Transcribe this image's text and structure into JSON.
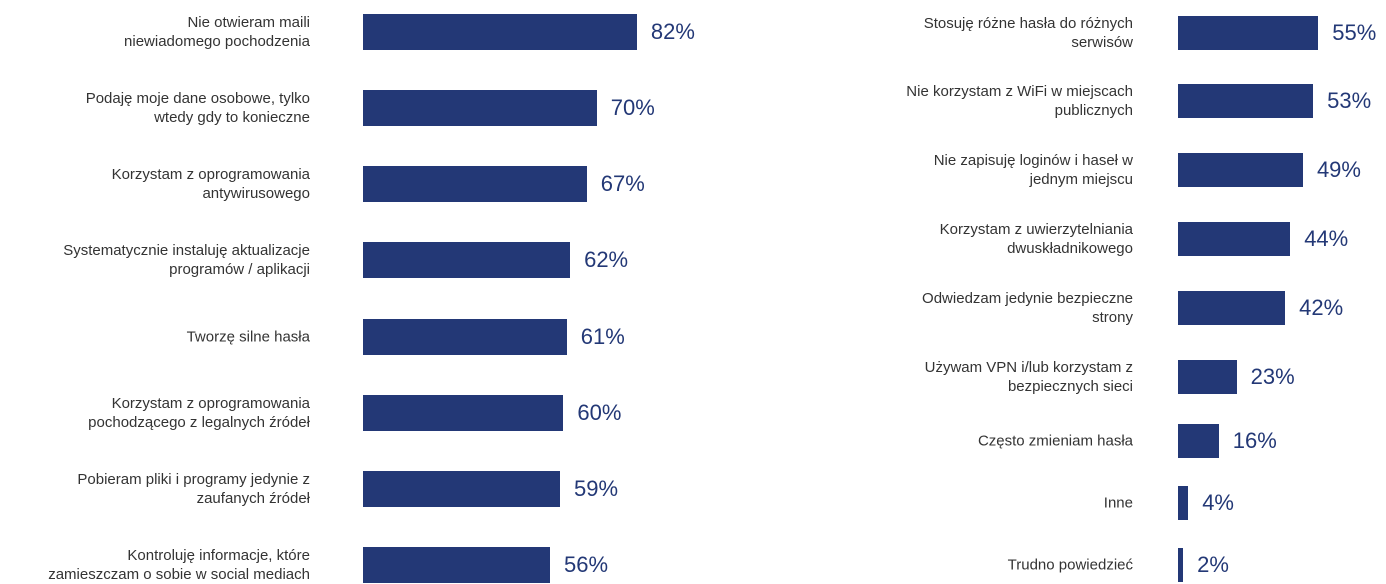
{
  "chart_data": [
    {
      "type": "barh",
      "categories": [
        "Nie otwieram maili\nniewiadomego pochodzenia",
        "Podaję moje dane osobowe, tylko\nwtedy gdy to konieczne",
        "Korzystam z oprogramowania\nantywirusowego",
        "Systematycznie instaluję aktualizacje\nprogramów / aplikacji",
        "Tworzę silne hasła",
        "Korzystam z oprogramowania\npochodzącego z legalnych źródeł",
        "Pobieram pliki i programy jedynie z\nzaufanych źródeł",
        "Kontroluję informacje, które\nzamieszczam o sobie w social mediach"
      ],
      "values": [
        82,
        70,
        67,
        62,
        61,
        60,
        59,
        56
      ],
      "value_labels": [
        "82%",
        "70%",
        "67%",
        "62%",
        "61%",
        "60%",
        "59%",
        "56%"
      ],
      "color": "#233876",
      "xlim": [
        0,
        100
      ]
    },
    {
      "type": "barh",
      "categories": [
        "Stosuję różne hasła do różnych\nserwisów",
        "Nie korzystam z WiFi w miejscach\npublicznych",
        "Nie zapisuję loginów i haseł w\njednym miejscu",
        "Korzystam z uwierzytelniania\ndwuskładnikowego",
        "Odwiedzam jedynie bezpieczne\nstrony",
        "Używam VPN i/lub korzystam z\nbezpiecznych sieci",
        "Często zmieniam hasła",
        "Inne",
        "Trudno powiedzieć"
      ],
      "values": [
        55,
        53,
        49,
        44,
        42,
        23,
        16,
        4,
        2
      ],
      "value_labels": [
        "55%",
        "53%",
        "49%",
        "44%",
        "42%",
        "23%",
        "16%",
        "4%",
        "2%"
      ],
      "color": "#233876",
      "xlim": [
        0,
        100
      ]
    }
  ]
}
